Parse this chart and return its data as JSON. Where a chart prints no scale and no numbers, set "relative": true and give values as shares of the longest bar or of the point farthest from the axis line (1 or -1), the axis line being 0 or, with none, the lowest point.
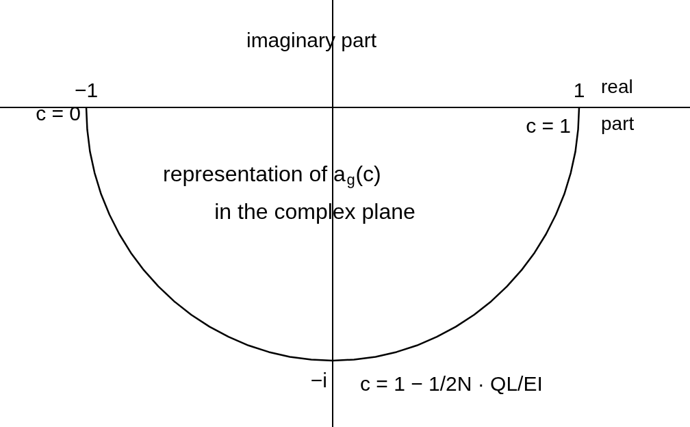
{
  "chart_data": {
    "type": "line",
    "xlabel": "real part",
    "ylabel": "imaginary part",
    "xlim": [
      -1.35,
      1.45
    ],
    "relative": true,
    "xticks": [
      {
        "value": -1,
        "label": "−1"
      },
      {
        "value": 1,
        "label": "1"
      }
    ],
    "series": [
      {
        "color": "#000000",
        "x": [
          -1,
          -0.996,
          -0.985,
          -0.966,
          -0.94,
          -0.906,
          -0.866,
          -0.819,
          -0.766,
          -0.707,
          -0.643,
          -0.574,
          -0.5,
          -0.423,
          -0.342,
          -0.259,
          -0.174,
          -0.087,
          0,
          0.087,
          0.174,
          0.259,
          0.342,
          0.423,
          0.5,
          0.574,
          0.643,
          0.707,
          0.766,
          0.819,
          0.866,
          0.906,
          0.94,
          0.966,
          0.985,
          0.996,
          1
        ],
        "values": [
          0,
          -0.087,
          -0.174,
          -0.259,
          -0.342,
          -0.423,
          -0.5,
          -0.574,
          -0.643,
          -0.707,
          -0.766,
          -0.819,
          -0.866,
          -0.906,
          -0.94,
          -0.966,
          -0.985,
          -0.996,
          -1,
          -0.996,
          -0.985,
          -0.966,
          -0.94,
          -0.906,
          -0.866,
          -0.819,
          -0.766,
          -0.707,
          -0.643,
          -0.574,
          -0.5,
          -0.423,
          -0.342,
          -0.259,
          -0.174,
          -0.087,
          0
        ]
      }
    ],
    "annotations": [
      {
        "text": "c = 0",
        "x": -1,
        "y": 0
      },
      {
        "text": "c = 1",
        "x": 1,
        "y": 0
      },
      {
        "text": "−i",
        "x": 0,
        "y": -1
      },
      {
        "text": "c = 1 − 1/2N · QL/EI",
        "x": 0,
        "y": -1
      },
      "representation of a$_{g}$(c)",
      "in the complex plane"
    ]
  }
}
